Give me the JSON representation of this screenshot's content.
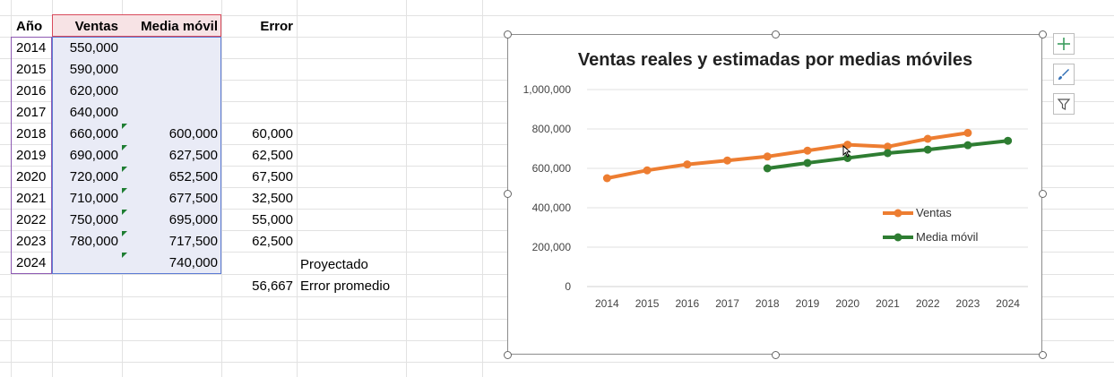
{
  "sheet": {
    "headers": {
      "year": "Año",
      "sales": "Ventas",
      "moving_avg": "Media móvil",
      "error": "Error"
    },
    "rows": [
      {
        "year": "2014",
        "sales": "550,000",
        "moving_avg": "",
        "error": ""
      },
      {
        "year": "2015",
        "sales": "590,000",
        "moving_avg": "",
        "error": ""
      },
      {
        "year": "2016",
        "sales": "620,000",
        "moving_avg": "",
        "error": ""
      },
      {
        "year": "2017",
        "sales": "640,000",
        "moving_avg": "",
        "error": ""
      },
      {
        "year": "2018",
        "sales": "660,000",
        "moving_avg": "600,000",
        "error": "60,000"
      },
      {
        "year": "2019",
        "sales": "690,000",
        "moving_avg": "627,500",
        "error": "62,500"
      },
      {
        "year": "2020",
        "sales": "720,000",
        "moving_avg": "652,500",
        "error": "67,500"
      },
      {
        "year": "2021",
        "sales": "710,000",
        "moving_avg": "677,500",
        "error": "32,500"
      },
      {
        "year": "2022",
        "sales": "750,000",
        "moving_avg": "695,000",
        "error": "55,000"
      },
      {
        "year": "2023",
        "sales": "780,000",
        "moving_avg": "717,500",
        "error": "62,500"
      },
      {
        "year": "2024",
        "sales": "",
        "moving_avg": "740,000",
        "error": ""
      }
    ],
    "projected_label": "Proyectado",
    "avg_error_value": "56,667",
    "avg_error_label": "Error promedio"
  },
  "chart_data": {
    "type": "line",
    "title": "Ventas reales y estimadas por medias móviles",
    "categories": [
      "2014",
      "2015",
      "2016",
      "2017",
      "2018",
      "2019",
      "2020",
      "2021",
      "2022",
      "2023",
      "2024"
    ],
    "ylim": [
      0,
      1000000
    ],
    "yticks": [
      0,
      200000,
      400000,
      600000,
      800000,
      1000000
    ],
    "ytick_labels": [
      "0",
      "200,000",
      "400,000",
      "600,000",
      "800,000",
      "1,000,000"
    ],
    "grid": true,
    "legend_position": "right",
    "series": [
      {
        "name": "Ventas",
        "color": "#ed7d31",
        "values": [
          550000,
          590000,
          620000,
          640000,
          660000,
          690000,
          720000,
          710000,
          750000,
          780000,
          null
        ]
      },
      {
        "name": "Media móvil",
        "color": "#2e7d32",
        "values": [
          null,
          null,
          null,
          null,
          600000,
          627500,
          652500,
          677500,
          695000,
          717500,
          740000
        ]
      }
    ]
  },
  "chart_tools": [
    {
      "icon": "plus-icon"
    },
    {
      "icon": "brush-icon"
    },
    {
      "icon": "filter-icon"
    }
  ]
}
